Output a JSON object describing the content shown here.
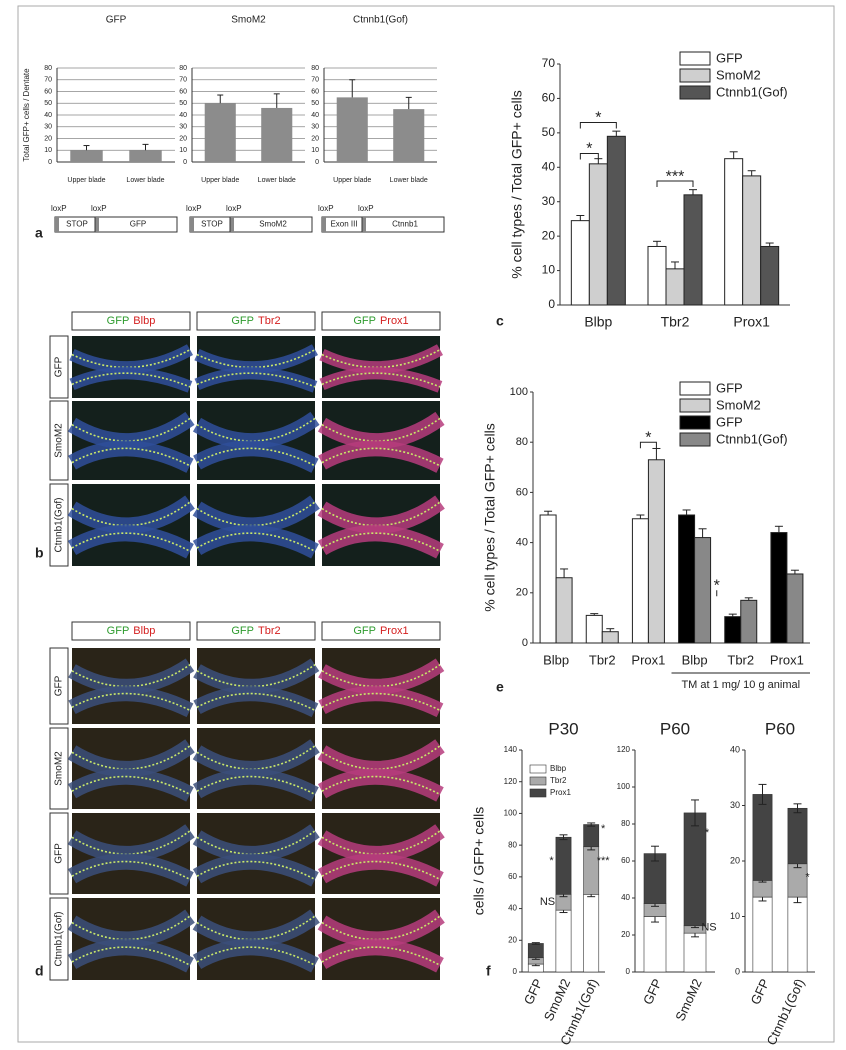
{
  "chart_data": [
    {
      "type": "bar",
      "title": "GFP",
      "ylabel": "Total GFP+ cells / Dentate",
      "categories": [
        "Upper blade",
        "Lower blade"
      ],
      "values": [
        10,
        10
      ],
      "errors": [
        4,
        5
      ],
      "color": "#8c8c8c",
      "ylim": [
        0,
        80
      ],
      "yticks": [
        0,
        10,
        20,
        30,
        40,
        50,
        60,
        70,
        80
      ],
      "grid": true
    },
    {
      "type": "bar",
      "title": "SmoM2",
      "categories": [
        "Upper blade",
        "Lower blade"
      ],
      "values": [
        50,
        46
      ],
      "errors": [
        7,
        12
      ],
      "color": "#8c8c8c",
      "ylim": [
        0,
        80
      ],
      "yticks": [
        0,
        10,
        20,
        30,
        40,
        50,
        60,
        70,
        80
      ],
      "grid": true
    },
    {
      "type": "bar",
      "title": "Ctnnb1(Gof)",
      "categories": [
        "Upper blade",
        "Lower blade"
      ],
      "values": [
        55,
        45
      ],
      "errors": [
        15,
        10
      ],
      "color": "#8c8c8c",
      "ylim": [
        0,
        80
      ],
      "yticks": [
        0,
        10,
        20,
        30,
        40,
        50,
        60,
        70,
        80
      ],
      "grid": true
    },
    {
      "type": "grouped_bar",
      "ylabel": "% cell types / Total GFP+ cells",
      "categories": [
        "Blbp",
        "Tbr2",
        "Prox1"
      ],
      "series": [
        {
          "name": "GFP",
          "color": "#ffffff",
          "values": [
            24.5,
            17,
            42.5
          ],
          "errors": [
            1.5,
            1.5,
            2
          ]
        },
        {
          "name": "SmoM2",
          "color": "#cfcfcf",
          "values": [
            41,
            10.5,
            37.5
          ],
          "errors": [
            1.5,
            2,
            1.5
          ]
        },
        {
          "name": "Ctnnb1(Gof)",
          "color": "#555555",
          "values": [
            49,
            32,
            17
          ],
          "errors": [
            1.5,
            1.5,
            1
          ]
        }
      ],
      "ylim": [
        0,
        70
      ],
      "yticks": [
        0,
        10,
        20,
        30,
        40,
        50,
        60,
        70
      ],
      "legend": "upper right",
      "annotations": [
        "*",
        "*",
        "***"
      ]
    },
    {
      "type": "grouped_bar",
      "ylabel": "% cell types / Total GFP+ cells",
      "categories": [
        "Blbp",
        "Tbr2",
        "Prox1",
        "Blbp",
        "Tbr2",
        "Prox1"
      ],
      "series": [
        {
          "name": "GFP",
          "color": "#ffffff",
          "values": [
            51,
            11,
            49.5,
            null,
            null,
            null
          ],
          "errors": [
            1.5,
            0.7,
            1.5,
            null,
            null,
            null
          ]
        },
        {
          "name": "SmoM2",
          "color": "#cfcfcf",
          "values": [
            26,
            4.5,
            73,
            null,
            null,
            null
          ],
          "errors": [
            3.5,
            1.2,
            4.5,
            null,
            null,
            null
          ]
        },
        {
          "name": "GFP",
          "color": "#000000",
          "values": [
            null,
            null,
            null,
            51,
            10.5,
            44
          ],
          "errors": [
            null,
            null,
            null,
            2,
            1,
            2.5
          ]
        },
        {
          "name": "Ctnnb1(Gof)",
          "color": "#888888",
          "values": [
            null,
            null,
            null,
            42,
            17,
            27.5
          ],
          "errors": [
            null,
            null,
            null,
            3.5,
            1,
            1.5
          ]
        }
      ],
      "ylim": [
        0,
        100
      ],
      "yticks": [
        0,
        20,
        40,
        60,
        80,
        100
      ],
      "legend": "upper right",
      "annotations": [
        "*",
        "*"
      ],
      "note": "TM at 1 mg/ 10 g animal"
    },
    {
      "type": "stacked_bar",
      "title": "P30",
      "ylabel": "cells / GFP+ cells",
      "categories": [
        "GFP",
        "SmoM2",
        "Ctnnb1(Gof)"
      ],
      "series": [
        {
          "name": "Blbp",
          "color": "#ffffff",
          "values": [
            5,
            39,
            49
          ],
          "errors": [
            1,
            1.5,
            1.5
          ]
        },
        {
          "name": "Tbr2",
          "color": "#aaaaaa",
          "values": [
            4,
            10,
            30
          ],
          "errors": [
            1,
            1.5,
            2
          ]
        },
        {
          "name": "Prox1",
          "color": "#444444",
          "values": [
            9,
            36,
            14
          ],
          "errors": [
            0.5,
            1.5,
            1
          ]
        }
      ],
      "ylim": [
        0,
        140
      ],
      "yticks": [
        0,
        20,
        40,
        60,
        80,
        100,
        120,
        140
      ],
      "legend": "upper left",
      "annotations": [
        "NS",
        "*",
        "*",
        "***"
      ]
    },
    {
      "type": "stacked_bar",
      "title": "P60",
      "categories": [
        "GFP",
        "SmoM2"
      ],
      "series": [
        {
          "name": "Blbp",
          "color": "#ffffff",
          "values": [
            30,
            21
          ],
          "errors": [
            3,
            2
          ]
        },
        {
          "name": "Tbr2",
          "color": "#aaaaaa",
          "values": [
            7,
            4
          ],
          "errors": [
            1.5,
            1
          ]
        },
        {
          "name": "Prox1",
          "color": "#444444",
          "values": [
            27,
            61
          ],
          "errors": [
            4,
            7
          ]
        }
      ],
      "ylim": [
        0,
        120
      ],
      "yticks": [
        0,
        20,
        40,
        60,
        80,
        100,
        120
      ],
      "annotations": [
        "*",
        "NS"
      ]
    },
    {
      "type": "stacked_bar",
      "title": "P60",
      "categories": [
        "GFP",
        "Ctnnb1(Gof)"
      ],
      "series": [
        {
          "name": "Blbp",
          "color": "#ffffff",
          "values": [
            13.5,
            13.5
          ],
          "errors": [
            0.7,
            1
          ]
        },
        {
          "name": "Tbr2",
          "color": "#aaaaaa",
          "values": [
            3,
            6
          ],
          "errors": [
            0.3,
            0.7
          ]
        },
        {
          "name": "Prox1",
          "color": "#444444",
          "values": [
            15.5,
            10
          ],
          "errors": [
            1.8,
            0.8
          ]
        }
      ],
      "ylim": [
        0,
        40
      ],
      "yticks": [
        0,
        10,
        20,
        30,
        40
      ],
      "annotations": [
        "*"
      ]
    }
  ],
  "constructs": [
    [
      "loxP",
      "STOP",
      "loxP",
      "GFP"
    ],
    [
      "loxP",
      "STOP",
      "loxP",
      "SmoM2"
    ],
    [
      "loxP",
      "Exon III",
      "loxP",
      "Ctnnb1"
    ]
  ],
  "micrograph_panels": [
    {
      "columns": [
        [
          "GFP",
          "Blbp"
        ],
        [
          "GFP",
          "Tbr2"
        ],
        [
          "GFP",
          "Prox1"
        ]
      ],
      "rows": [
        "GFP",
        "SmoM2",
        "Ctnnb1(Gof)"
      ]
    },
    {
      "columns": [
        [
          "GFP",
          "Blbp"
        ],
        [
          "GFP",
          "Tbr2"
        ],
        [
          "GFP",
          "Prox1"
        ]
      ],
      "rows": [
        "GFP",
        "SmoM2",
        "GFP",
        "Ctnnb1(Gof)"
      ]
    }
  ],
  "panel_labels": [
    "a",
    "b",
    "c",
    "d",
    "e",
    "f"
  ]
}
